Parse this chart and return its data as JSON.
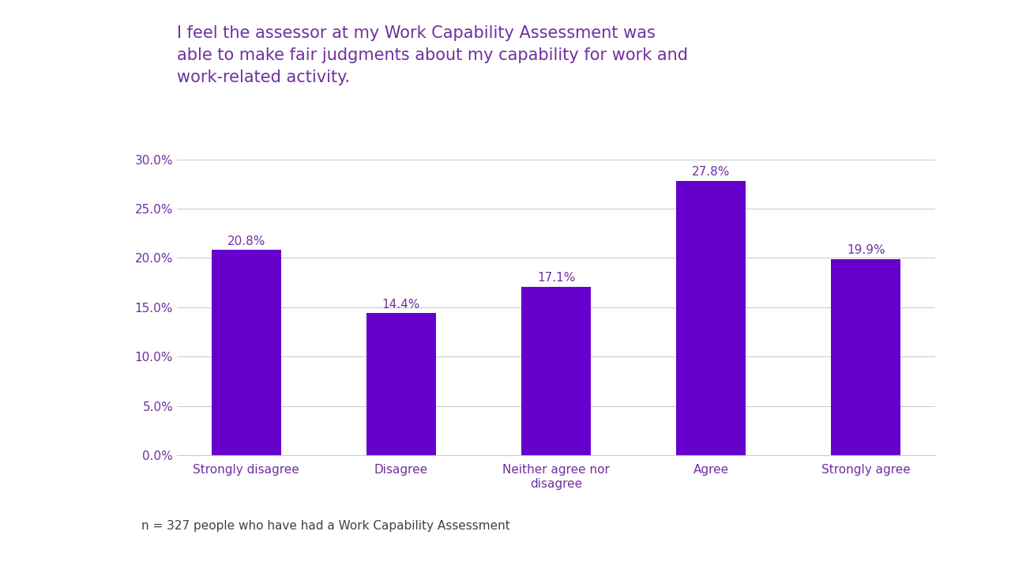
{
  "title": "I feel the assessor at my Work Capability Assessment was\nable to make fair judgments about my capability for work and\nwork-related activity.",
  "categories": [
    "Strongly disagree",
    "Disagree",
    "Neither agree nor\ndisagree",
    "Agree",
    "Strongly agree"
  ],
  "values": [
    20.8,
    14.4,
    17.1,
    27.8,
    19.9
  ],
  "bar_color": "#6600cc",
  "label_color": "#7030a0",
  "title_color": "#7030a0",
  "tick_color": "#7030a0",
  "footnote": "n = 327 people who have had a Work Capability Assessment",
  "footnote_color": "#404040",
  "ylim": [
    0,
    30
  ],
  "yticks": [
    0,
    5,
    10,
    15,
    20,
    25,
    30
  ],
  "ytick_labels": [
    "0.0%",
    "5.0%",
    "10.0%",
    "15.0%",
    "20.0%",
    "25.0%",
    "30.0%"
  ],
  "background_color": "#ffffff",
  "grid_color": "#cccccc",
  "bar_width": 0.45,
  "title_fontsize": 15,
  "tick_fontsize": 11,
  "label_fontsize": 11,
  "footnote_fontsize": 11
}
